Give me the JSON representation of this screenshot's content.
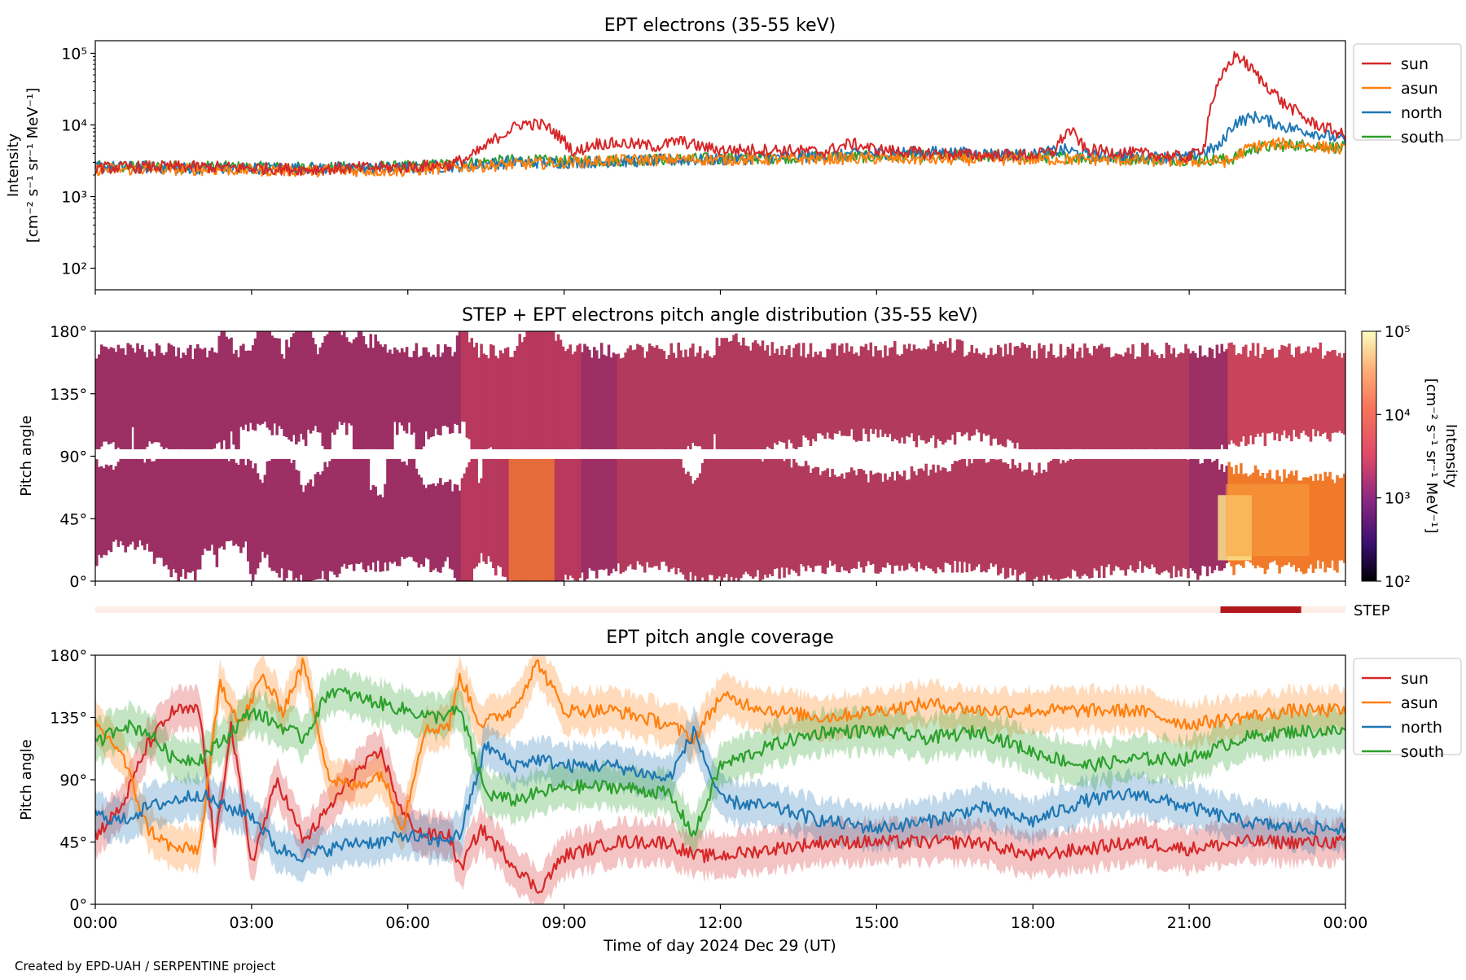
{
  "colors": {
    "sun": "#d62728",
    "asun": "#ff7f0e",
    "north": "#1f77b4",
    "south": "#2ca02c",
    "step_bar": "#b2181b",
    "step_track": "#fdeee8"
  },
  "credit": "Created by EPD-UAH / SERPENTINE project",
  "step_label": "STEP",
  "chart_data": [
    {
      "type": "line",
      "title": "EPT electrons (35-55 keV)",
      "ylabel_line1": "Intensity",
      "ylabel_line2": "[cm⁻² s⁻¹ sr⁻¹ MeV⁻¹]",
      "yscale": "log",
      "ylim": [
        50,
        150000
      ],
      "yticks": [
        {
          "value": 100,
          "label": "10²"
        },
        {
          "value": 1000,
          "label": "10³"
        },
        {
          "value": 10000,
          "label": "10⁴"
        },
        {
          "value": 100000,
          "label": "10⁵"
        }
      ],
      "xlim_hours": [
        0,
        24
      ],
      "legend_position": "upper-right-outside",
      "series": [
        {
          "name": "sun",
          "color": "#d62728",
          "x": [
            0,
            1,
            2,
            3,
            4,
            5,
            6,
            6.8,
            7.2,
            7.5,
            7.9,
            8.2,
            8.6,
            8.9,
            9.2,
            9.6,
            10.2,
            10.8,
            11.2,
            11.6,
            12,
            13,
            14,
            14.5,
            15,
            16,
            17,
            18,
            18.4,
            18.7,
            19,
            20,
            21,
            21.3,
            21.6,
            21.9,
            22.1,
            22.4,
            22.8,
            23.3,
            24
          ],
          "y": [
            2500,
            2600,
            2600,
            2500,
            2400,
            2500,
            2600,
            2800,
            3500,
            5000,
            8000,
            10500,
            10000,
            7000,
            4000,
            5500,
            5500,
            5000,
            6000,
            5000,
            4500,
            4500,
            4200,
            5500,
            4500,
            4000,
            3800,
            3800,
            4200,
            8500,
            4500,
            4000,
            3500,
            5000,
            40000,
            95000,
            70000,
            40000,
            20000,
            11000,
            7000
          ]
        },
        {
          "name": "asun",
          "color": "#ff7f0e",
          "x": [
            0,
            2,
            4,
            6,
            7,
            8,
            9,
            10,
            11,
            12,
            13,
            14,
            15,
            16,
            17,
            18,
            19,
            20,
            21,
            21.8,
            22.2,
            22.8,
            23.5,
            24
          ],
          "y": [
            2400,
            2400,
            2300,
            2300,
            2600,
            2800,
            3000,
            3200,
            3300,
            3300,
            3300,
            3400,
            3400,
            3300,
            3300,
            3300,
            3300,
            3200,
            3100,
            3100,
            5000,
            5500,
            5000,
            4500
          ]
        },
        {
          "name": "north",
          "color": "#1f77b4",
          "x": [
            0,
            2,
            4,
            6,
            7,
            8,
            9,
            10,
            11,
            12,
            13,
            14,
            15,
            16,
            17,
            18,
            18.6,
            19,
            20,
            21,
            21.6,
            21.9,
            22.3,
            22.8,
            23.5,
            24
          ],
          "y": [
            2600,
            2500,
            2500,
            2500,
            2700,
            3000,
            3000,
            3100,
            3200,
            3300,
            3500,
            3700,
            4000,
            4200,
            4000,
            3800,
            4500,
            3800,
            3600,
            3500,
            5000,
            11000,
            13000,
            9500,
            7500,
            6000
          ]
        },
        {
          "name": "south",
          "color": "#2ca02c",
          "x": [
            0,
            2,
            4,
            6,
            7,
            8,
            9,
            10,
            11,
            12,
            13,
            14,
            15,
            16,
            17,
            18,
            19,
            20,
            21,
            21.8,
            22.3,
            23,
            24
          ],
          "y": [
            2600,
            2600,
            2500,
            2600,
            2900,
            3200,
            3100,
            3200,
            3300,
            3400,
            3500,
            3600,
            3600,
            3700,
            3700,
            3600,
            3500,
            3400,
            3300,
            3300,
            4800,
            5300,
            4800
          ]
        }
      ]
    },
    {
      "type": "heatmap",
      "title": "STEP + EPT electrons pitch angle distribution (35-55 keV)",
      "ylabel": "Pitch angle",
      "ylim": [
        0,
        180
      ],
      "yticks": [
        "0°",
        "45°",
        "90°",
        "135°",
        "180°"
      ],
      "colorbar_label_line1": "Intensity",
      "colorbar_label_line2": "[cm⁻² s⁻¹ sr⁻¹ MeV⁻¹]",
      "colorbar_scale": "log",
      "colorbar_range": [
        100,
        100000
      ],
      "colorbar_ticks": [
        "10²",
        "10³",
        "10⁴",
        "10⁵"
      ],
      "xlim_hours": [
        0,
        24
      ],
      "step_coverage_hours": [
        21.6,
        23.15
      ]
    },
    {
      "type": "line",
      "title": "EPT pitch angle coverage",
      "ylabel": "Pitch angle",
      "xlabel": "Time of day 2024 Dec 29 (UT)",
      "ylim": [
        0,
        180
      ],
      "yticks": [
        "0°",
        "45°",
        "90°",
        "135°",
        "180°"
      ],
      "xlim_hours": [
        0,
        24
      ],
      "xticks": [
        "00:00",
        "03:00",
        "06:00",
        "09:00",
        "12:00",
        "15:00",
        "18:00",
        "21:00",
        "00:00"
      ],
      "legend_position": "upper-right-outside",
      "band_halfwidth_deg": 15,
      "series": [
        {
          "name": "sun",
          "color": "#d62728",
          "x": [
            0,
            0.5,
            1,
            1.5,
            2,
            2.3,
            2.6,
            3,
            3.5,
            4,
            4.5,
            5,
            5.5,
            5.9,
            6.3,
            6.8,
            7.0,
            7.4,
            8,
            8.5,
            9,
            10,
            11,
            11.5,
            12,
            13,
            14,
            15,
            16,
            17,
            18,
            19,
            20,
            21,
            22,
            23,
            24
          ],
          "y": [
            50,
            70,
            115,
            140,
            140,
            40,
            130,
            30,
            90,
            45,
            70,
            95,
            110,
            65,
            50,
            50,
            25,
            55,
            30,
            10,
            35,
            45,
            45,
            35,
            35,
            40,
            45,
            45,
            45,
            45,
            35,
            40,
            45,
            40,
            45,
            45,
            45
          ]
        },
        {
          "name": "asun",
          "color": "#ff7f0e",
          "x": [
            0,
            0.5,
            1,
            1.5,
            2,
            2.4,
            2.8,
            3.2,
            3.6,
            4,
            4.5,
            5,
            5.5,
            5.9,
            6.3,
            6.8,
            7.0,
            7.4,
            8,
            8.5,
            9,
            10,
            11,
            11.5,
            12,
            13,
            14,
            15,
            16,
            17,
            18,
            19,
            20,
            21,
            22,
            23,
            24
          ],
          "y": [
            130,
            110,
            55,
            40,
            40,
            160,
            130,
            165,
            140,
            175,
            90,
            85,
            95,
            55,
            125,
            130,
            165,
            130,
            140,
            175,
            140,
            140,
            130,
            120,
            150,
            140,
            135,
            140,
            145,
            140,
            140,
            140,
            140,
            130,
            135,
            140,
            140
          ]
        },
        {
          "name": "north",
          "color": "#1f77b4",
          "x": [
            0,
            0.5,
            1,
            1.5,
            2,
            2.5,
            3,
            3.5,
            4,
            4.5,
            5,
            5.5,
            6,
            6.5,
            7,
            7.5,
            8,
            8.5,
            9,
            10,
            11,
            11.5,
            12,
            13,
            14,
            15,
            16,
            17,
            18,
            19,
            20,
            21,
            22,
            23,
            24
          ],
          "y": [
            65,
            60,
            70,
            75,
            80,
            70,
            65,
            40,
            35,
            40,
            45,
            45,
            50,
            45,
            50,
            115,
            100,
            105,
            100,
            100,
            90,
            125,
            75,
            70,
            60,
            55,
            60,
            70,
            60,
            75,
            80,
            70,
            60,
            55,
            55
          ]
        },
        {
          "name": "south",
          "color": "#2ca02c",
          "x": [
            0,
            0.5,
            1,
            1.5,
            2,
            2.5,
            3,
            3.5,
            4,
            4.5,
            5,
            5.5,
            6,
            6.5,
            7,
            7.5,
            8,
            8.5,
            9,
            10,
            11,
            11.5,
            12,
            13,
            14,
            15,
            16,
            17,
            18,
            19,
            20,
            21,
            22,
            23,
            24
          ],
          "y": [
            115,
            130,
            125,
            105,
            105,
            120,
            140,
            130,
            120,
            155,
            150,
            145,
            140,
            135,
            140,
            80,
            75,
            80,
            85,
            85,
            80,
            50,
            100,
            115,
            125,
            125,
            120,
            125,
            110,
            100,
            105,
            105,
            120,
            125,
            125
          ]
        }
      ]
    }
  ]
}
